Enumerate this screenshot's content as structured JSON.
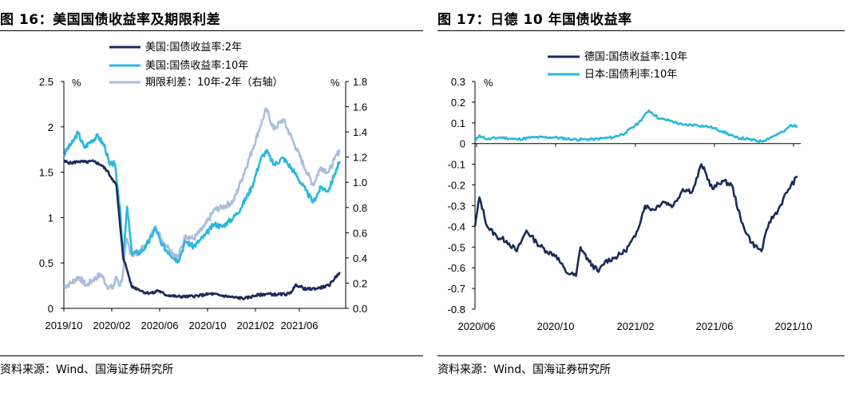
{
  "charts": [
    {
      "title": "图 16：美国国债收益率及期限利差",
      "source": "资料来源：Wind、国海证券研究所"
    },
    {
      "title": "图 17：日德 10 年国债收益率",
      "source": "资料来源：Wind、国海证券研究所"
    }
  ],
  "chart_data": [
    {
      "type": "line",
      "left_axis_unit": "%",
      "right_axis_unit": "%",
      "ylim": [
        0,
        2.5
      ],
      "yticks": [
        0,
        0.5,
        1,
        1.5,
        2,
        2.5
      ],
      "ylim_right": [
        0,
        1.8
      ],
      "yticks_right": [
        0.0,
        0.2,
        0.4,
        0.6,
        0.8,
        1.0,
        1.2,
        1.4,
        1.6,
        1.8
      ],
      "xlim": [
        "2019-10",
        "2021-10"
      ],
      "xticks": [
        "2019/10",
        "2020/02",
        "2020/06",
        "2020/10",
        "2021/02",
        "2021/06"
      ],
      "legend_position": "top",
      "series": [
        {
          "name": "美国:国债收益率:2年",
          "color": "#1b2a5c",
          "axis": "left",
          "points": [
            [
              "2019-10-01",
              1.62
            ],
            [
              "2019-10-20",
              1.6
            ],
            [
              "2019-11-10",
              1.62
            ],
            [
              "2019-11-30",
              1.61
            ],
            [
              "2019-12-20",
              1.62
            ],
            [
              "2020-01-10",
              1.58
            ],
            [
              "2020-01-25",
              1.52
            ],
            [
              "2020-02-10",
              1.42
            ],
            [
              "2020-02-20",
              1.35
            ],
            [
              "2020-03-01",
              0.9
            ],
            [
              "2020-03-10",
              0.55
            ],
            [
              "2020-03-20",
              0.42
            ],
            [
              "2020-04-01",
              0.24
            ],
            [
              "2020-04-20",
              0.21
            ],
            [
              "2020-05-10",
              0.17
            ],
            [
              "2020-06-01",
              0.17
            ],
            [
              "2020-06-10",
              0.2
            ],
            [
              "2020-07-01",
              0.15
            ],
            [
              "2020-08-01",
              0.13
            ],
            [
              "2020-09-01",
              0.13
            ],
            [
              "2020-10-01",
              0.14
            ],
            [
              "2020-11-01",
              0.16
            ],
            [
              "2020-12-01",
              0.14
            ],
            [
              "2021-01-01",
              0.12
            ],
            [
              "2021-02-01",
              0.11
            ],
            [
              "2021-03-01",
              0.14
            ],
            [
              "2021-04-01",
              0.16
            ],
            [
              "2021-05-01",
              0.15
            ],
            [
              "2021-06-01",
              0.16
            ],
            [
              "2021-06-20",
              0.26
            ],
            [
              "2021-07-15",
              0.21
            ],
            [
              "2021-08-15",
              0.22
            ],
            [
              "2021-09-15",
              0.25
            ],
            [
              "2021-10-15",
              0.4
            ]
          ]
        },
        {
          "name": "美国:国债收益率:10年",
          "color": "#2bb7de",
          "axis": "left",
          "points": [
            [
              "2019-10-01",
              1.68
            ],
            [
              "2019-10-10",
              1.76
            ],
            [
              "2019-10-25",
              1.83
            ],
            [
              "2019-11-08",
              1.94
            ],
            [
              "2019-11-25",
              1.77
            ],
            [
              "2019-12-15",
              1.85
            ],
            [
              "2020-01-01",
              1.9
            ],
            [
              "2020-01-20",
              1.78
            ],
            [
              "2020-02-01",
              1.58
            ],
            [
              "2020-02-15",
              1.6
            ],
            [
              "2020-03-01",
              1.1
            ],
            [
              "2020-03-09",
              0.54
            ],
            [
              "2020-03-20",
              1.12
            ],
            [
              "2020-04-01",
              0.62
            ],
            [
              "2020-04-20",
              0.61
            ],
            [
              "2020-05-10",
              0.68
            ],
            [
              "2020-06-05",
              0.89
            ],
            [
              "2020-06-20",
              0.7
            ],
            [
              "2020-07-10",
              0.62
            ],
            [
              "2020-08-04",
              0.52
            ],
            [
              "2020-08-25",
              0.74
            ],
            [
              "2020-09-15",
              0.68
            ],
            [
              "2020-10-15",
              0.8
            ],
            [
              "2020-11-10",
              0.93
            ],
            [
              "2020-12-01",
              0.9
            ],
            [
              "2021-01-01",
              1.0
            ],
            [
              "2021-01-20",
              1.1
            ],
            [
              "2021-02-20",
              1.34
            ],
            [
              "2021-03-15",
              1.64
            ],
            [
              "2021-03-31",
              1.74
            ],
            [
              "2021-04-20",
              1.58
            ],
            [
              "2021-05-15",
              1.66
            ],
            [
              "2021-06-15",
              1.5
            ],
            [
              "2021-07-15",
              1.3
            ],
            [
              "2021-08-04",
              1.17
            ],
            [
              "2021-08-25",
              1.33
            ],
            [
              "2021-09-15",
              1.3
            ],
            [
              "2021-10-01",
              1.48
            ],
            [
              "2021-10-15",
              1.62
            ]
          ]
        },
        {
          "name": "期限利差：10年-2年（右轴）",
          "color": "#a9bedb",
          "axis": "right",
          "points": [
            [
              "2019-10-01",
              0.17
            ],
            [
              "2019-10-20",
              0.2
            ],
            [
              "2019-11-10",
              0.25
            ],
            [
              "2019-12-01",
              0.18
            ],
            [
              "2019-12-20",
              0.23
            ],
            [
              "2020-01-10",
              0.27
            ],
            [
              "2020-01-25",
              0.18
            ],
            [
              "2020-02-10",
              0.16
            ],
            [
              "2020-02-20",
              0.25
            ],
            [
              "2020-03-01",
              0.18
            ],
            [
              "2020-03-09",
              0.28
            ],
            [
              "2020-03-18",
              0.55
            ],
            [
              "2020-04-01",
              0.42
            ],
            [
              "2020-04-20",
              0.45
            ],
            [
              "2020-05-10",
              0.5
            ],
            [
              "2020-06-05",
              0.65
            ],
            [
              "2020-06-20",
              0.55
            ],
            [
              "2020-07-10",
              0.48
            ],
            [
              "2020-08-04",
              0.4
            ],
            [
              "2020-08-25",
              0.58
            ],
            [
              "2020-09-15",
              0.55
            ],
            [
              "2020-10-15",
              0.65
            ],
            [
              "2020-11-10",
              0.78
            ],
            [
              "2020-12-01",
              0.8
            ],
            [
              "2021-01-01",
              0.85
            ],
            [
              "2021-01-20",
              1.0
            ],
            [
              "2021-02-20",
              1.25
            ],
            [
              "2021-03-15",
              1.45
            ],
            [
              "2021-03-31",
              1.58
            ],
            [
              "2021-04-20",
              1.42
            ],
            [
              "2021-05-15",
              1.5
            ],
            [
              "2021-06-15",
              1.3
            ],
            [
              "2021-07-15",
              1.1
            ],
            [
              "2021-08-04",
              0.98
            ],
            [
              "2021-08-25",
              1.12
            ],
            [
              "2021-09-15",
              1.08
            ],
            [
              "2021-10-01",
              1.18
            ],
            [
              "2021-10-15",
              1.26
            ]
          ]
        }
      ]
    },
    {
      "type": "line",
      "left_axis_unit": "%",
      "ylim": [
        -0.8,
        0.3
      ],
      "yticks": [
        -0.8,
        -0.7,
        -0.6,
        -0.5,
        -0.4,
        -0.3,
        -0.2,
        -0.1,
        0,
        0.1,
        0.2,
        0.3
      ],
      "xlim": [
        "2020-06",
        "2021-10"
      ],
      "xticks": [
        "2020/06",
        "2020/10",
        "2021/02",
        "2021/06",
        "2021/10"
      ],
      "legend_position": "top",
      "series": [
        {
          "name": "德国:国债收益率:10年",
          "color": "#1b2a5c",
          "points": [
            [
              "2020-06-01",
              -0.4
            ],
            [
              "2020-06-08",
              -0.26
            ],
            [
              "2020-06-20",
              -0.4
            ],
            [
              "2020-07-05",
              -0.45
            ],
            [
              "2020-07-20",
              -0.47
            ],
            [
              "2020-08-05",
              -0.52
            ],
            [
              "2020-08-20",
              -0.42
            ],
            [
              "2020-09-05",
              -0.48
            ],
            [
              "2020-09-20",
              -0.52
            ],
            [
              "2020-10-05",
              -0.54
            ],
            [
              "2020-10-20",
              -0.62
            ],
            [
              "2020-11-05",
              -0.64
            ],
            [
              "2020-11-12",
              -0.5
            ],
            [
              "2020-11-25",
              -0.57
            ],
            [
              "2020-12-10",
              -0.62
            ],
            [
              "2020-12-20",
              -0.57
            ],
            [
              "2021-01-05",
              -0.55
            ],
            [
              "2021-01-20",
              -0.52
            ],
            [
              "2021-02-05",
              -0.45
            ],
            [
              "2021-02-20",
              -0.3
            ],
            [
              "2021-03-05",
              -0.32
            ],
            [
              "2021-03-20",
              -0.28
            ],
            [
              "2021-04-05",
              -0.3
            ],
            [
              "2021-04-20",
              -0.22
            ],
            [
              "2021-05-05",
              -0.23
            ],
            [
              "2021-05-19",
              -0.1
            ],
            [
              "2021-06-05",
              -0.22
            ],
            [
              "2021-06-20",
              -0.18
            ],
            [
              "2021-07-05",
              -0.2
            ],
            [
              "2021-07-20",
              -0.38
            ],
            [
              "2021-08-05",
              -0.48
            ],
            [
              "2021-08-20",
              -0.52
            ],
            [
              "2021-09-01",
              -0.38
            ],
            [
              "2021-09-15",
              -0.32
            ],
            [
              "2021-10-01",
              -0.22
            ],
            [
              "2021-10-15",
              -0.16
            ]
          ]
        },
        {
          "name": "日本:国债利率:10年",
          "color": "#2bb7de",
          "points": [
            [
              "2020-06-01",
              0.01
            ],
            [
              "2020-06-08",
              0.04
            ],
            [
              "2020-06-20",
              0.02
            ],
            [
              "2020-07-10",
              0.03
            ],
            [
              "2020-08-05",
              0.02
            ],
            [
              "2020-09-01",
              0.03
            ],
            [
              "2020-10-01",
              0.03
            ],
            [
              "2020-11-01",
              0.02
            ],
            [
              "2020-12-01",
              0.02
            ],
            [
              "2021-01-01",
              0.03
            ],
            [
              "2021-01-20",
              0.05
            ],
            [
              "2021-02-10",
              0.1
            ],
            [
              "2021-02-26",
              0.16
            ],
            [
              "2021-03-15",
              0.12
            ],
            [
              "2021-04-01",
              0.11
            ],
            [
              "2021-04-20",
              0.09
            ],
            [
              "2021-05-10",
              0.09
            ],
            [
              "2021-06-01",
              0.08
            ],
            [
              "2021-06-20",
              0.06
            ],
            [
              "2021-07-10",
              0.03
            ],
            [
              "2021-08-01",
              0.02
            ],
            [
              "2021-08-20",
              0.01
            ],
            [
              "2021-09-10",
              0.04
            ],
            [
              "2021-09-25",
              0.06
            ],
            [
              "2021-10-05",
              0.09
            ],
            [
              "2021-10-15",
              0.08
            ]
          ]
        }
      ]
    }
  ]
}
